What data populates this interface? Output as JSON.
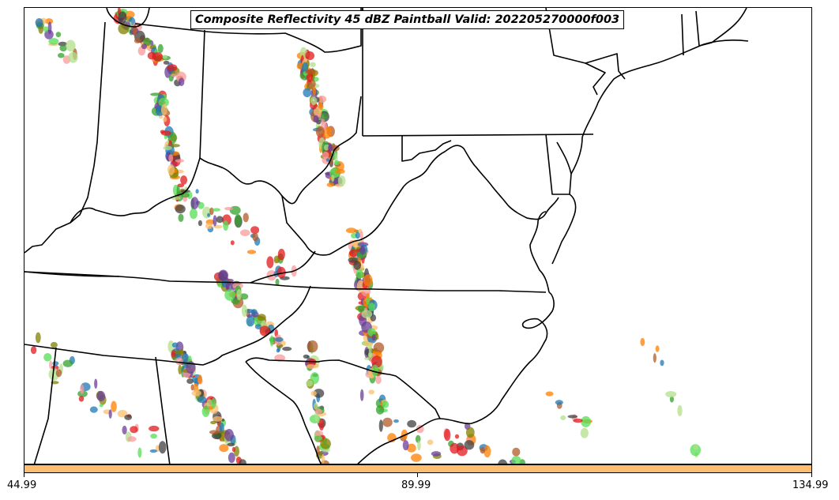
{
  "title": "Composite Reflectivity 45 dBZ Paintball Valid: 202205270000f003",
  "colorbar": {
    "color": "#fdbf6f",
    "ticks": [
      "44.99",
      "89.99",
      "134.99"
    ]
  },
  "member_colors": [
    "#33a02c",
    "#e31a1c",
    "#ff7f00",
    "#b2df8a",
    "#fb9a99",
    "#fdbf6f",
    "#6a3d9a",
    "#b15928",
    "#1f78b4",
    "#808000",
    "#404040",
    "#55dd55"
  ]
}
